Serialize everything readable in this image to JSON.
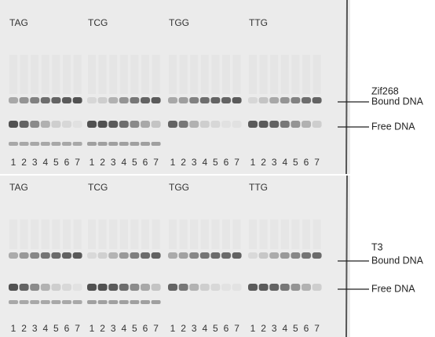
{
  "panels": [
    {
      "groups": [
        {
          "label": "TAG",
          "lanes": [
            "1",
            "2",
            "3",
            "4",
            "5",
            "6",
            "7"
          ]
        },
        {
          "label": "TCG",
          "lanes": [
            "1",
            "2",
            "3",
            "4",
            "5",
            "6",
            "7"
          ]
        },
        {
          "label": "TGG",
          "lanes": [
            "1",
            "2",
            "3",
            "4",
            "5",
            "6",
            "7"
          ]
        },
        {
          "label": "TTG",
          "lanes": [
            "1",
            "2",
            "3",
            "4",
            "5",
            "6",
            "7"
          ]
        }
      ],
      "protein": "Zif268",
      "bound_label": "Bound DNA",
      "free_label": "Free DNA"
    },
    {
      "groups": [
        {
          "label": "TAG",
          "lanes": [
            "1",
            "2",
            "3",
            "4",
            "5",
            "6",
            "7"
          ]
        },
        {
          "label": "TCG",
          "lanes": [
            "1",
            "2",
            "3",
            "4",
            "5",
            "6",
            "7"
          ]
        },
        {
          "label": "TGG",
          "lanes": [
            "1",
            "2",
            "3",
            "4",
            "5",
            "6",
            "7"
          ]
        },
        {
          "label": "TTG",
          "lanes": [
            "1",
            "2",
            "3",
            "4",
            "5",
            "6",
            "7"
          ]
        }
      ],
      "protein": "T3",
      "bound_label": "Bound DNA",
      "free_label": "Free DNA"
    }
  ]
}
